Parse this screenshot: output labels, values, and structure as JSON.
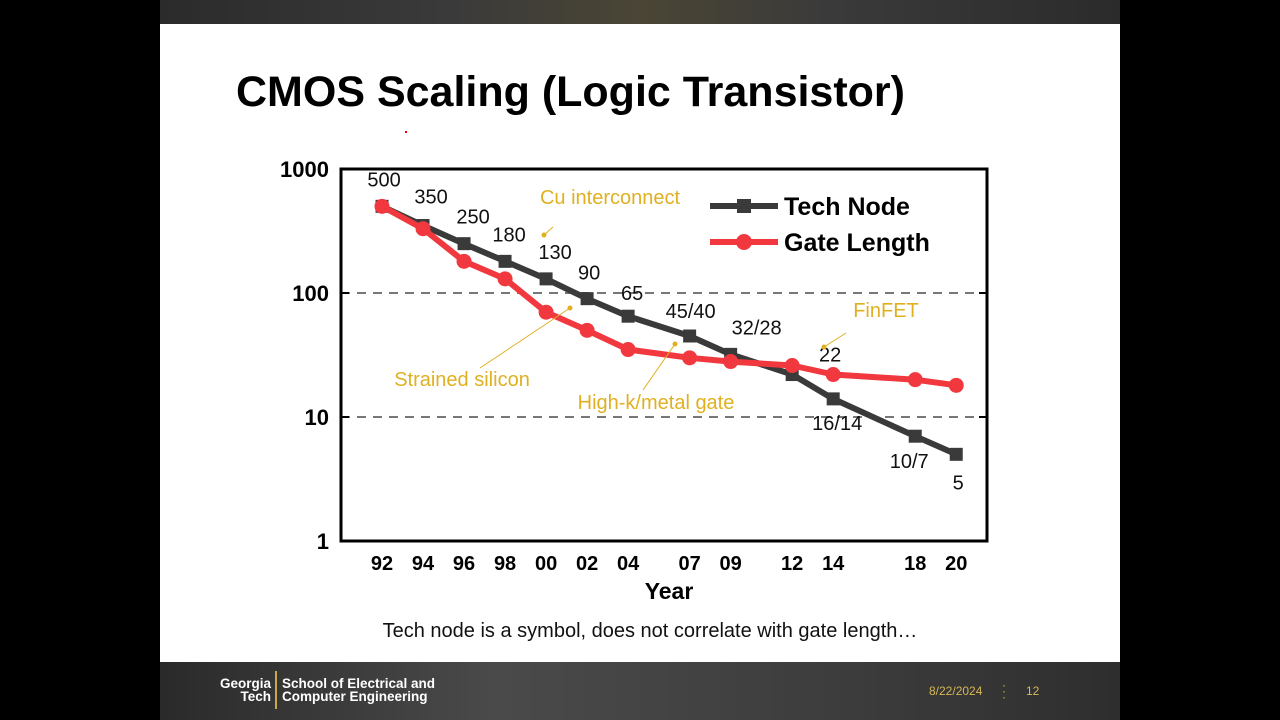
{
  "slide": {
    "title": "CMOS Scaling (Logic Transistor)",
    "caption": "Tech node is a symbol, does not correlate with gate length…"
  },
  "footer": {
    "logo_line1_left": "Georgia",
    "logo_line2_left": "Tech",
    "logo_line1_right": "School of Electrical and",
    "logo_line2_right": "Computer Engineering",
    "date": "8/22/2024",
    "page_number": "12"
  },
  "chart_data": {
    "type": "line",
    "title": "",
    "xlabel": "Year",
    "ylabel": "",
    "y_scale": "log",
    "ylim": [
      1,
      1000
    ],
    "y_ticks": [
      "1",
      "10",
      "100",
      "1000"
    ],
    "x_ticks": [
      "92",
      "94",
      "96",
      "98",
      "00",
      "02",
      "04",
      "07",
      "09",
      "12",
      "14",
      "18",
      "20"
    ],
    "x_tick_years": [
      1992,
      1994,
      1996,
      1998,
      2000,
      2002,
      2004,
      2007,
      2009,
      2012,
      2014,
      2018,
      2020
    ],
    "xlim": [
      1990,
      2021.5
    ],
    "grid": "dashed horizontal at 10 and 100",
    "legend": "top-right",
    "series": [
      {
        "name": "Tech Node",
        "color": "#3a3a3a",
        "marker": "square",
        "x": [
          1992,
          1994,
          1996,
          1998,
          2000,
          2002,
          2004,
          2007,
          2009,
          2012,
          2014,
          2018,
          2020
        ],
        "values": [
          500,
          350,
          250,
          180,
          130,
          90,
          65,
          45,
          32,
          22,
          14,
          7,
          5
        ],
        "point_labels": [
          "500",
          "350",
          "250",
          "180",
          "130",
          "90",
          "65",
          "45/40",
          "32/28",
          "22",
          "16/14",
          "10/7",
          "5"
        ]
      },
      {
        "name": "Gate Length",
        "color": "#f2383f",
        "marker": "circle",
        "x": [
          1992,
          1994,
          1996,
          1998,
          2000,
          2002,
          2004,
          2007,
          2009,
          2012,
          2014,
          2018,
          2020
        ],
        "values": [
          500,
          330,
          180,
          130,
          70,
          50,
          35,
          30,
          28,
          26,
          22,
          20,
          18
        ]
      }
    ],
    "annotations": [
      {
        "text": "Cu interconnect",
        "color": "#e0b020",
        "points_to_year": 2002
      },
      {
        "text": "Strained silicon",
        "color": "#e0b020",
        "points_to_year": 2001
      },
      {
        "text": "High-k/metal gate",
        "color": "#e0b020",
        "points_to_year": 2006.5
      },
      {
        "text": "FinFET",
        "color": "#e0b020",
        "points_to_year": 2013
      }
    ]
  }
}
